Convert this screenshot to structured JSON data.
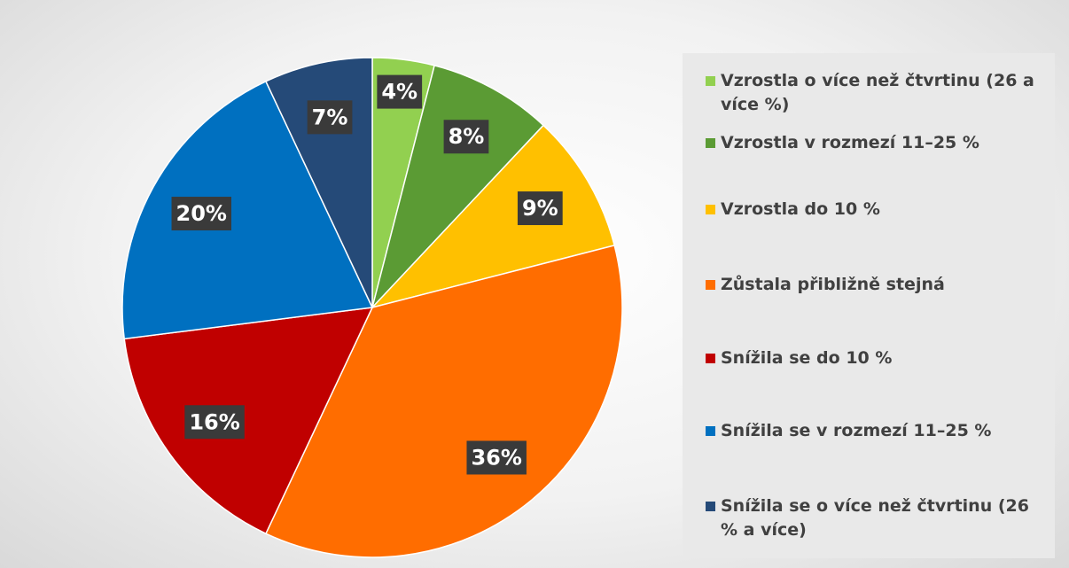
{
  "chart_data": {
    "type": "pie",
    "categories": [
      "Vzrostla o více než čtvrtinu (26 a více %)",
      "Vzrostla  v rozmezí 11–25 %",
      "Vzrostla do 10 %",
      "Zůstala přibližně stejná",
      "Snížila se do 10 %",
      "Snížila se v rozmezí 11–25 %",
      "Snížila se o více než čtvrtinu (26 % a více)"
    ],
    "values": [
      4,
      8,
      9,
      36,
      16,
      20,
      7
    ],
    "value_labels": [
      "4%",
      "8%",
      "9%",
      "36%",
      "16%",
      "20%",
      "7%"
    ],
    "colors": [
      "#92d050",
      "#5b9b34",
      "#ffc000",
      "#ff6d00",
      "#c00000",
      "#0070c0",
      "#254a78"
    ],
    "legend": "right"
  }
}
